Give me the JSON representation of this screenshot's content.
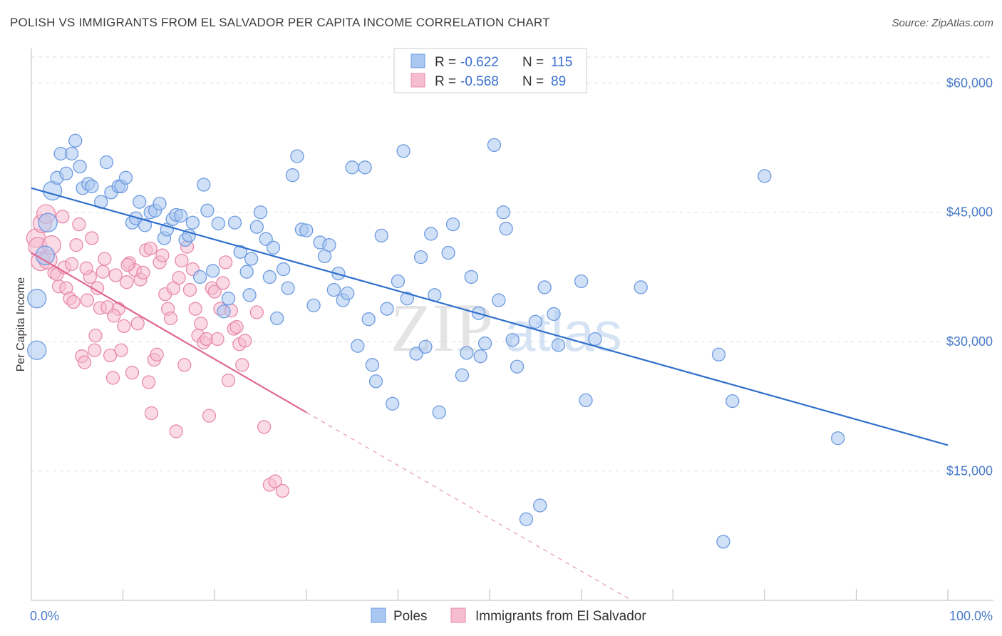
{
  "title": "POLISH VS IMMIGRANTS FROM EL SALVADOR PER CAPITA INCOME CORRELATION CHART",
  "source": "Source: ZipAtlas.com",
  "watermark": {
    "zip": "ZIP",
    "atlas": "atlas"
  },
  "colors": {
    "poles_fill": "#a9c7f0",
    "poles_stroke": "#6d9be0",
    "poles_line": "#2f6fcc",
    "salv_fill": "#f6bcd0",
    "salv_stroke": "#e88aab",
    "salv_line": "#e06892",
    "tick_text": "#4a7cc9",
    "grid": "#dedede"
  },
  "legend": {
    "rows": [
      {
        "r_label": "R =",
        "r_value": "-0.622",
        "n_label": "N =",
        "n_value": "115"
      },
      {
        "r_label": "R =",
        "r_value": "-0.568",
        "n_label": "N =",
        "n_value": "89"
      }
    ]
  },
  "chart_data": {
    "type": "scatter",
    "title": "POLISH VS IMMIGRANTS FROM EL SALVADOR PER CAPITA INCOME CORRELATION CHART",
    "xlabel": "",
    "ylabel": "Per Capita Income",
    "xlim": [
      0,
      100
    ],
    "ylim": [
      0,
      63000
    ],
    "x_tick_labels": [
      "0.0%",
      "100.0%"
    ],
    "y_ticks": [
      15000,
      30000,
      45000,
      60000
    ],
    "y_tick_labels": [
      "$15,000",
      "$30,000",
      "$45,000",
      "$60,000"
    ],
    "grid": true,
    "legend_position": "top-center",
    "series": [
      {
        "name": "Poles",
        "r": -0.622,
        "n": 115,
        "trend": {
          "x": [
            0,
            100
          ],
          "y": [
            47800,
            18000
          ]
        },
        "points": [
          [
            0.6,
            35000
          ],
          [
            0.6,
            29000
          ],
          [
            1.5,
            40000
          ],
          [
            1.8,
            43800
          ],
          [
            2.3,
            47500
          ],
          [
            2.8,
            49000
          ],
          [
            3.2,
            51800
          ],
          [
            3.8,
            49500
          ],
          [
            4.4,
            51800
          ],
          [
            4.8,
            53300
          ],
          [
            5.3,
            50300
          ],
          [
            5.6,
            47800
          ],
          [
            6.2,
            48300
          ],
          [
            6.6,
            48000
          ],
          [
            7.6,
            46200
          ],
          [
            8.2,
            50800
          ],
          [
            8.7,
            47300
          ],
          [
            9.5,
            48000
          ],
          [
            9.8,
            48000
          ],
          [
            10.3,
            49000
          ],
          [
            11.0,
            43800
          ],
          [
            11.4,
            44300
          ],
          [
            11.8,
            46200
          ],
          [
            12.4,
            43500
          ],
          [
            13.0,
            45000
          ],
          [
            13.5,
            45200
          ],
          [
            14.0,
            46000
          ],
          [
            14.5,
            42000
          ],
          [
            14.8,
            43000
          ],
          [
            15.4,
            44200
          ],
          [
            15.8,
            44700
          ],
          [
            16.3,
            44600
          ],
          [
            16.8,
            41800
          ],
          [
            17.2,
            42300
          ],
          [
            17.6,
            43800
          ],
          [
            18.4,
            37500
          ],
          [
            18.8,
            48200
          ],
          [
            19.2,
            45200
          ],
          [
            19.8,
            38200
          ],
          [
            20.4,
            43700
          ],
          [
            21.0,
            33500
          ],
          [
            21.5,
            35000
          ],
          [
            22.2,
            43800
          ],
          [
            22.8,
            40400
          ],
          [
            23.5,
            38100
          ],
          [
            23.8,
            35400
          ],
          [
            24.0,
            39600
          ],
          [
            24.6,
            43300
          ],
          [
            25.0,
            45000
          ],
          [
            25.6,
            41900
          ],
          [
            26.0,
            37500
          ],
          [
            26.4,
            40900
          ],
          [
            26.8,
            32700
          ],
          [
            27.5,
            38400
          ],
          [
            28.0,
            36200
          ],
          [
            28.5,
            49300
          ],
          [
            29.0,
            51500
          ],
          [
            29.5,
            43000
          ],
          [
            30.0,
            42900
          ],
          [
            30.8,
            34200
          ],
          [
            31.5,
            41500
          ],
          [
            32.0,
            39900
          ],
          [
            32.5,
            41200
          ],
          [
            33.0,
            36000
          ],
          [
            33.5,
            37900
          ],
          [
            34.0,
            34800
          ],
          [
            34.5,
            35600
          ],
          [
            35.0,
            50200
          ],
          [
            35.6,
            29500
          ],
          [
            36.4,
            50200
          ],
          [
            36.8,
            32600
          ],
          [
            37.2,
            27300
          ],
          [
            37.6,
            25400
          ],
          [
            38.2,
            42300
          ],
          [
            38.8,
            33800
          ],
          [
            39.4,
            22800
          ],
          [
            40.0,
            37000
          ],
          [
            40.6,
            52100
          ],
          [
            41.0,
            35000
          ],
          [
            42.0,
            28600
          ],
          [
            42.5,
            39800
          ],
          [
            43.0,
            29400
          ],
          [
            43.6,
            42500
          ],
          [
            44.0,
            35400
          ],
          [
            44.5,
            21800
          ],
          [
            45.5,
            40300
          ],
          [
            46.0,
            43600
          ],
          [
            47.0,
            26100
          ],
          [
            47.5,
            28700
          ],
          [
            48.0,
            37500
          ],
          [
            48.8,
            33300
          ],
          [
            49.0,
            28300
          ],
          [
            49.5,
            29800
          ],
          [
            50.5,
            52800
          ],
          [
            51.0,
            34800
          ],
          [
            51.5,
            45000
          ],
          [
            51.8,
            43100
          ],
          [
            52.5,
            30200
          ],
          [
            53.0,
            27100
          ],
          [
            54.0,
            9400
          ],
          [
            55.0,
            32300
          ],
          [
            55.5,
            11000
          ],
          [
            56.0,
            36300
          ],
          [
            57.0,
            33200
          ],
          [
            57.5,
            29600
          ],
          [
            60.0,
            37000
          ],
          [
            60.5,
            23200
          ],
          [
            61.5,
            30300
          ],
          [
            66.5,
            36300
          ],
          [
            75.0,
            28500
          ],
          [
            76.5,
            23100
          ],
          [
            80.0,
            49200
          ],
          [
            88.0,
            18800
          ],
          [
            75.5,
            6800
          ]
        ]
      },
      {
        "name": "Immigrants from El Salvador",
        "r": -0.568,
        "n": 89,
        "trend": {
          "x": [
            0,
            30
          ],
          "y": [
            40300,
            21800
          ]
        },
        "trend_dashed": {
          "x": [
            30,
            65.5
          ],
          "y": [
            21800,
            0
          ]
        },
        "points": [
          [
            0.5,
            42000
          ],
          [
            0.7,
            41000
          ],
          [
            1.0,
            39300
          ],
          [
            1.2,
            43700
          ],
          [
            1.6,
            44800
          ],
          [
            1.8,
            39500
          ],
          [
            2.2,
            41200
          ],
          [
            2.5,
            38000
          ],
          [
            2.8,
            37800
          ],
          [
            3.0,
            36400
          ],
          [
            3.4,
            44500
          ],
          [
            3.6,
            38600
          ],
          [
            3.8,
            36200
          ],
          [
            4.2,
            35000
          ],
          [
            4.4,
            39000
          ],
          [
            4.6,
            34600
          ],
          [
            4.9,
            41200
          ],
          [
            5.2,
            43600
          ],
          [
            5.5,
            28300
          ],
          [
            5.8,
            27600
          ],
          [
            6.1,
            34800
          ],
          [
            6.4,
            37500
          ],
          [
            6.6,
            42000
          ],
          [
            6.9,
            29000
          ],
          [
            7.2,
            36200
          ],
          [
            7.5,
            33900
          ],
          [
            7.8,
            38100
          ],
          [
            8.0,
            39600
          ],
          [
            8.3,
            34000
          ],
          [
            8.6,
            28400
          ],
          [
            8.9,
            25800
          ],
          [
            9.2,
            37700
          ],
          [
            9.5,
            33800
          ],
          [
            9.8,
            29000
          ],
          [
            10.1,
            31800
          ],
          [
            10.4,
            36900
          ],
          [
            10.7,
            39100
          ],
          [
            11.0,
            26400
          ],
          [
            11.3,
            38300
          ],
          [
            11.6,
            32100
          ],
          [
            11.9,
            37200
          ],
          [
            12.2,
            38000
          ],
          [
            12.5,
            40600
          ],
          [
            12.8,
            25300
          ],
          [
            13.1,
            21700
          ],
          [
            13.4,
            27900
          ],
          [
            13.7,
            28500
          ],
          [
            14.0,
            39200
          ],
          [
            14.3,
            40000
          ],
          [
            14.6,
            35500
          ],
          [
            14.9,
            33800
          ],
          [
            15.2,
            32700
          ],
          [
            15.5,
            36200
          ],
          [
            15.8,
            19600
          ],
          [
            16.1,
            37400
          ],
          [
            16.4,
            39400
          ],
          [
            16.7,
            27300
          ],
          [
            17.0,
            41000
          ],
          [
            17.3,
            36000
          ],
          [
            17.6,
            38400
          ],
          [
            17.9,
            33800
          ],
          [
            18.2,
            30700
          ],
          [
            18.5,
            32100
          ],
          [
            18.8,
            29900
          ],
          [
            19.1,
            30300
          ],
          [
            19.4,
            21400
          ],
          [
            19.7,
            36200
          ],
          [
            20.0,
            35800
          ],
          [
            20.3,
            30300
          ],
          [
            20.6,
            33800
          ],
          [
            20.9,
            36800
          ],
          [
            21.2,
            39200
          ],
          [
            21.5,
            25500
          ],
          [
            21.8,
            33600
          ],
          [
            22.1,
            31500
          ],
          [
            22.4,
            31700
          ],
          [
            22.7,
            29700
          ],
          [
            23.0,
            27300
          ],
          [
            23.3,
            30100
          ],
          [
            24.6,
            33400
          ],
          [
            25.4,
            20100
          ],
          [
            26.0,
            13400
          ],
          [
            26.6,
            13800
          ],
          [
            27.4,
            12700
          ],
          [
            13.0,
            40800
          ],
          [
            10.5,
            38900
          ],
          [
            9.0,
            33000
          ],
          [
            6.0,
            38500
          ],
          [
            7.0,
            30700
          ]
        ]
      }
    ]
  }
}
